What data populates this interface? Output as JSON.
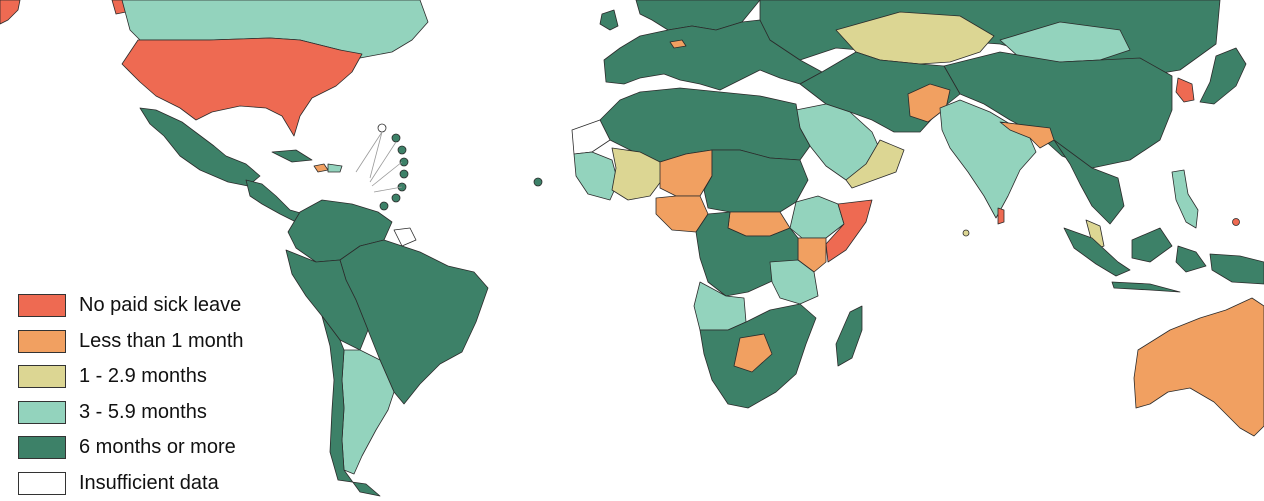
{
  "categories": {
    "none": {
      "label": "No paid sick leave",
      "color": "#ee6a52"
    },
    "lt1": {
      "label": "Less than 1 month",
      "color": "#f1a061"
    },
    "m1": {
      "label": "1 - 2.9 months",
      "color": "#dcd693"
    },
    "m3": {
      "label": "3 - 5.9 months",
      "color": "#93d3bd"
    },
    "m6": {
      "label": "6 months or more",
      "color": "#3d8168"
    },
    "insufficient": {
      "label": "Insufficient data",
      "color": "#ffffff"
    }
  },
  "legend": {
    "items": [
      {
        "label": "No paid sick leave",
        "color": "#ee6a52"
      },
      {
        "label": "Less than 1 month",
        "color": "#f1a061"
      },
      {
        "label": "1 - 2.9 months",
        "color": "#dcd693"
      },
      {
        "label": "3 - 5.9 months",
        "color": "#93d3bd"
      },
      {
        "label": "6 months or more",
        "color": "#3d8168"
      },
      {
        "label": "Insufficient data",
        "color": "#ffffff"
      }
    ]
  },
  "regions": [
    {
      "name": "canada",
      "category": "m3"
    },
    {
      "name": "united-states",
      "category": "none"
    },
    {
      "name": "alaska",
      "category": "none"
    },
    {
      "name": "mexico",
      "category": "m6"
    },
    {
      "name": "central-america",
      "category": "m6"
    },
    {
      "name": "cuba",
      "category": "m6"
    },
    {
      "name": "haiti",
      "category": "lt1"
    },
    {
      "name": "dominican-republic",
      "category": "m3"
    },
    {
      "name": "brazil",
      "category": "m6"
    },
    {
      "name": "colombia-venezuela",
      "category": "m6"
    },
    {
      "name": "peru-bolivia",
      "category": "m6"
    },
    {
      "name": "argentina",
      "category": "m3"
    },
    {
      "name": "chile",
      "category": "m6"
    },
    {
      "name": "french-guiana",
      "category": "insufficient"
    },
    {
      "name": "europe",
      "category": "m6"
    },
    {
      "name": "scandinavia",
      "category": "m6"
    },
    {
      "name": "britain",
      "category": "m6"
    },
    {
      "name": "switzerland",
      "category": "lt1"
    },
    {
      "name": "russia",
      "category": "m6"
    },
    {
      "name": "kazakhstan",
      "category": "m1"
    },
    {
      "name": "mongolia",
      "category": "m3"
    },
    {
      "name": "china",
      "category": "m6"
    },
    {
      "name": "korea",
      "category": "none"
    },
    {
      "name": "japan",
      "category": "m6"
    },
    {
      "name": "afghanistan",
      "category": "lt1"
    },
    {
      "name": "iran-central-asia",
      "category": "m6"
    },
    {
      "name": "arabia",
      "category": "m3"
    },
    {
      "name": "yemen-oman",
      "category": "m1"
    },
    {
      "name": "india",
      "category": "m3"
    },
    {
      "name": "nepal-bangladesh",
      "category": "lt1"
    },
    {
      "name": "sri-lanka",
      "category": "none"
    },
    {
      "name": "southeast-asia",
      "category": "m6"
    },
    {
      "name": "malaysia",
      "category": "m1"
    },
    {
      "name": "indonesia",
      "category": "m6"
    },
    {
      "name": "philippines",
      "category": "m3"
    },
    {
      "name": "australia",
      "category": "lt1"
    },
    {
      "name": "north-africa",
      "category": "m6"
    },
    {
      "name": "west-africa-mauritania",
      "category": "m3"
    },
    {
      "name": "mali",
      "category": "m1"
    },
    {
      "name": "niger",
      "category": "lt1"
    },
    {
      "name": "nigeria",
      "category": "lt1"
    },
    {
      "name": "chad-sudan",
      "category": "m6"
    },
    {
      "name": "south-sudan",
      "category": "lt1"
    },
    {
      "name": "ethiopia",
      "category": "m3"
    },
    {
      "name": "somalia",
      "category": "none"
    },
    {
      "name": "kenya",
      "category": "lt1"
    },
    {
      "name": "central-africa",
      "category": "m6"
    },
    {
      "name": "tanzania",
      "category": "m3"
    },
    {
      "name": "angola",
      "category": "m3"
    },
    {
      "name": "southern-africa",
      "category": "m6"
    },
    {
      "name": "zimbabwe",
      "category": "lt1"
    },
    {
      "name": "madagascar",
      "category": "m6"
    },
    {
      "name": "western-sahara",
      "category": "insufficient"
    }
  ]
}
